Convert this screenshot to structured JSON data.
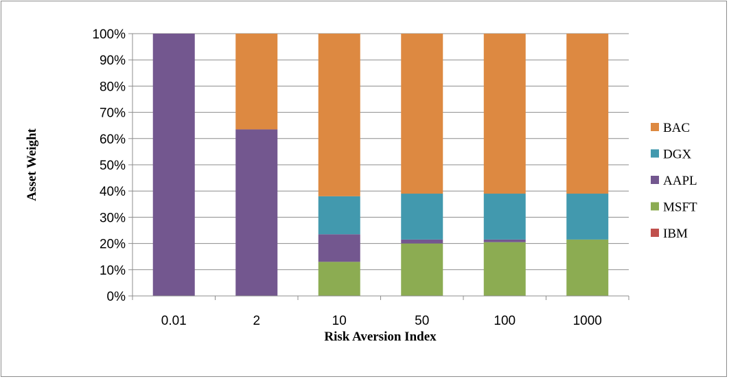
{
  "chart_data": {
    "type": "bar",
    "stacked": true,
    "normalized": true,
    "title": "",
    "xlabel": "Risk Aversion Index",
    "ylabel": "Asset Weight",
    "categories": [
      "0.01",
      "2",
      "10",
      "50",
      "100",
      "1000"
    ],
    "ylim": [
      0,
      100
    ],
    "yticks": [
      "0%",
      "10%",
      "20%",
      "30%",
      "40%",
      "50%",
      "60%",
      "70%",
      "80%",
      "90%",
      "100%"
    ],
    "grid": true,
    "legend_position": "right",
    "series": [
      {
        "name": "IBM",
        "color": "#c0504d",
        "values": [
          0,
          0,
          0,
          0,
          0,
          0
        ]
      },
      {
        "name": "MSFT",
        "color": "#8cac52",
        "values": [
          0,
          0,
          13,
          20,
          20.5,
          21.5
        ]
      },
      {
        "name": "AAPL",
        "color": "#73578f",
        "values": [
          100,
          63.5,
          10.5,
          1.5,
          1,
          0
        ]
      },
      {
        "name": "DGX",
        "color": "#4299ae",
        "values": [
          0,
          0,
          14.5,
          17.5,
          17.5,
          17.5
        ]
      },
      {
        "name": "BAC",
        "color": "#dd8941",
        "values": [
          0,
          36.5,
          62,
          61,
          61,
          61
        ]
      }
    ],
    "legend_order": [
      "BAC",
      "DGX",
      "AAPL",
      "MSFT",
      "IBM"
    ]
  }
}
